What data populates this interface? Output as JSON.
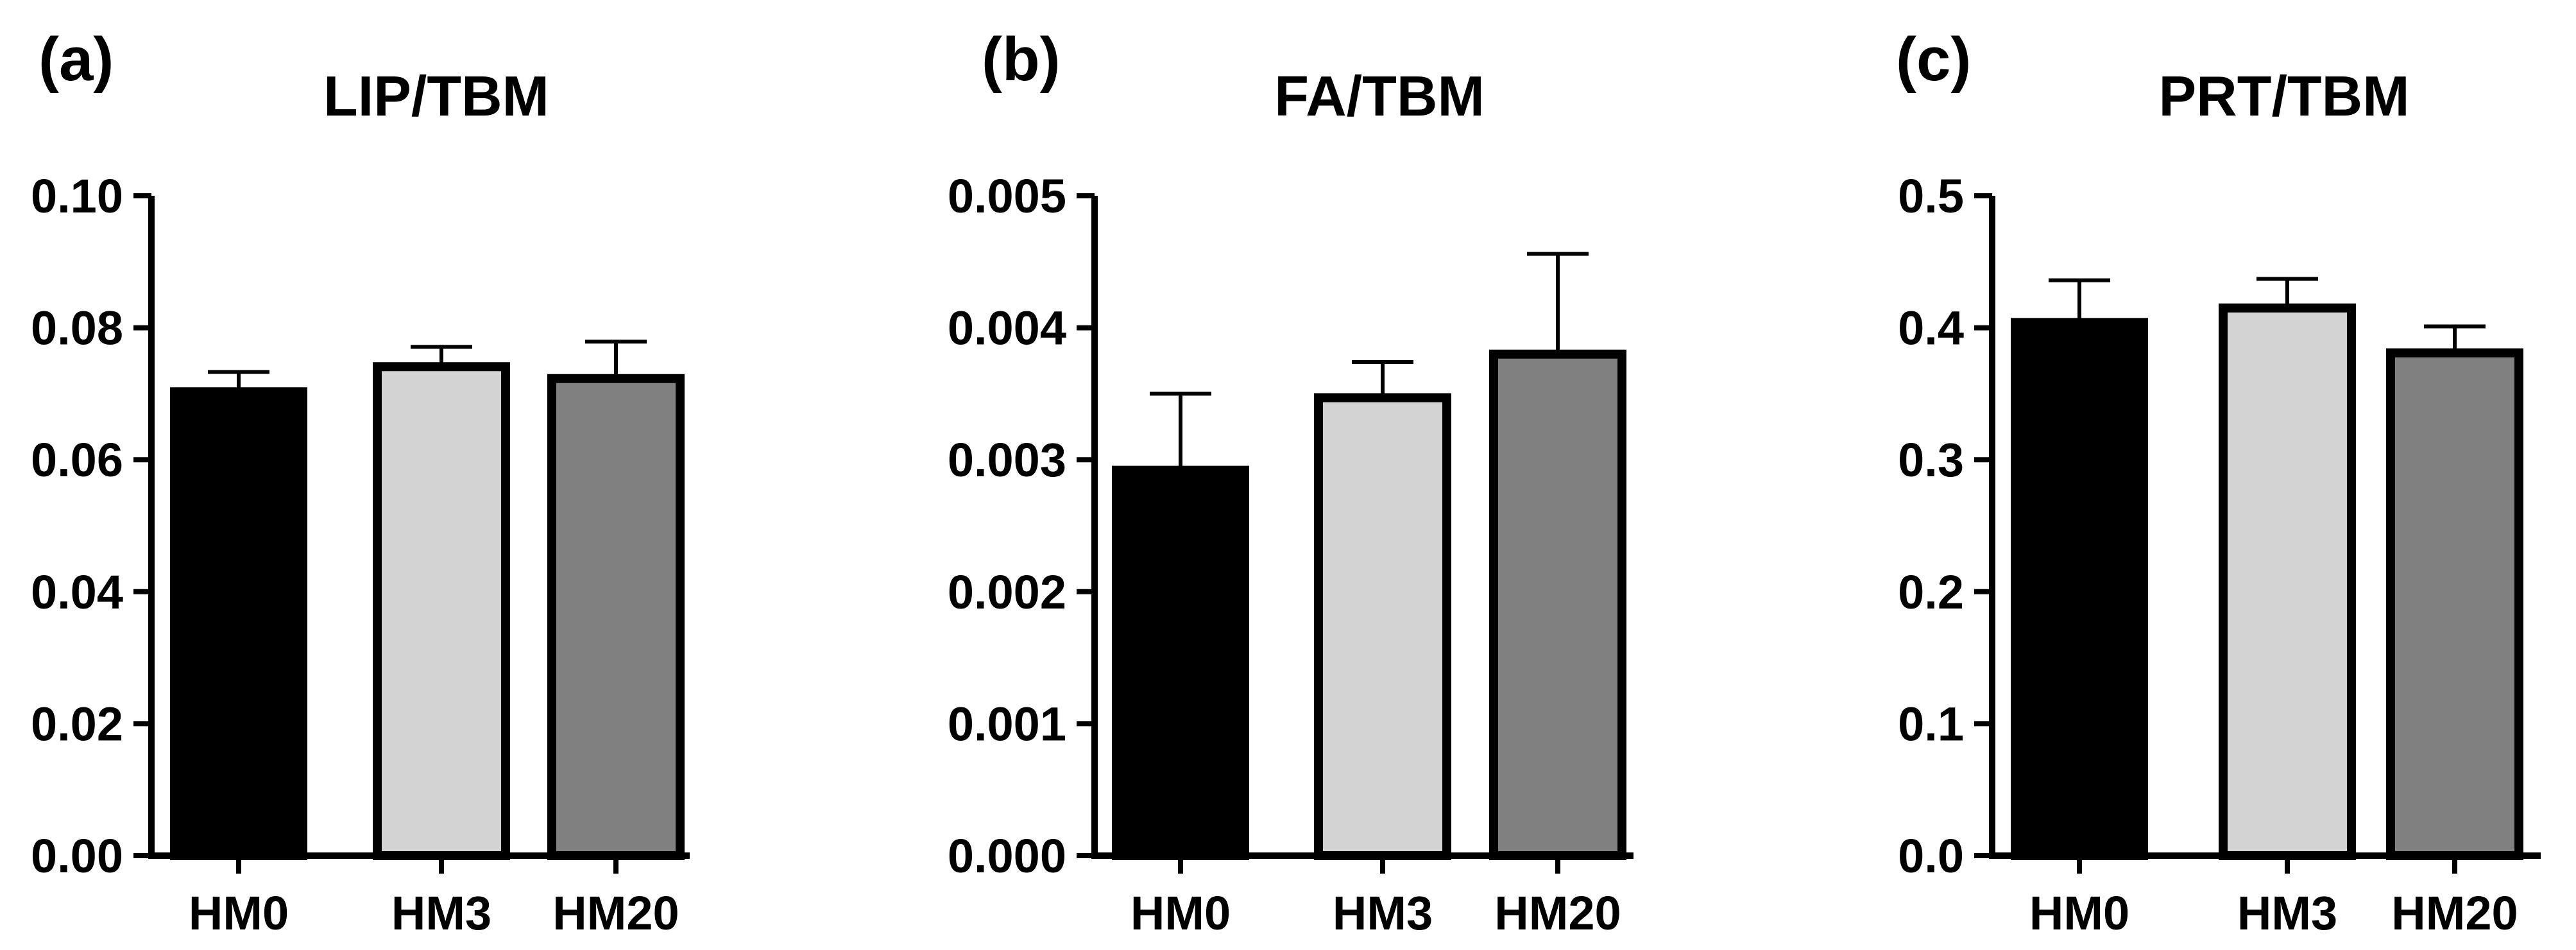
{
  "chart_data": [
    {
      "type": "bar",
      "panel_label": "(a)",
      "title": "LIP/TBM",
      "xlabel": "",
      "ylabel": "",
      "categories": [
        "HM0",
        "HM3",
        "HM20"
      ],
      "values": [
        0.0703,
        0.0741,
        0.0723
      ],
      "error_upper": [
        0.0733,
        0.0771,
        0.0779
      ],
      "colors": [
        "#000000",
        "#d3d3d3",
        "#808080"
      ],
      "ylim": [
        0,
        0.1
      ],
      "yticks": [
        "0.00",
        "0.02",
        "0.04",
        "0.06",
        "0.08",
        "0.10"
      ],
      "grid": false,
      "legend": false
    },
    {
      "type": "bar",
      "panel_label": "(b)",
      "title": "FA/TBM",
      "xlabel": "",
      "ylabel": "",
      "categories": [
        "HM0",
        "HM3",
        "HM20"
      ],
      "values": [
        0.00292,
        0.00347,
        0.0038
      ],
      "error_upper": [
        0.0035,
        0.00374,
        0.00456
      ],
      "colors": [
        "#000000",
        "#d3d3d3",
        "#808080"
      ],
      "ylim": [
        0,
        0.005
      ],
      "yticks": [
        "0.000",
        "0.001",
        "0.002",
        "0.003",
        "0.004",
        "0.005"
      ],
      "grid": false,
      "legend": false
    },
    {
      "type": "bar",
      "panel_label": "(c)",
      "title": "PRT/TBM",
      "xlabel": "",
      "ylabel": "",
      "categories": [
        "HM0",
        "HM3",
        "HM20"
      ],
      "values": [
        0.404,
        0.415,
        0.381
      ],
      "error_upper": [
        0.436,
        0.437,
        0.401
      ],
      "colors": [
        "#000000",
        "#d3d3d3",
        "#808080"
      ],
      "ylim": [
        0,
        0.5
      ],
      "yticks": [
        "0.0",
        "0.1",
        "0.2",
        "0.3",
        "0.4",
        "0.5"
      ],
      "grid": false,
      "legend": false
    }
  ]
}
